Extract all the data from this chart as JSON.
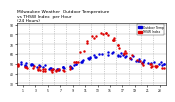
{
  "title": "Milwaukee Weather  Outdoor Temperature\nvs THSW Index  per Hour\n(24 Hours)",
  "title_fontsize": 3.2,
  "background_color": "#ffffff",
  "grid_color": "#aaaaaa",
  "temp_color": "#0000dd",
  "thsw_color": "#dd0000",
  "legend_temp_label": "Outdoor Temp",
  "legend_thsw_label": "THSW Index",
  "ylim": [
    28,
    92
  ],
  "xlim": [
    0,
    24
  ],
  "yticks": [
    30,
    40,
    50,
    60,
    70,
    80,
    90
  ],
  "xticks": [
    1,
    3,
    5,
    7,
    9,
    11,
    13,
    15,
    17,
    19,
    21,
    23
  ],
  "temp_x": [
    0.5,
    1.5,
    2.5,
    3.5,
    4.5,
    5.5,
    6.5,
    7.5,
    8.5,
    9.5,
    10.5,
    11.5,
    12.5,
    13.5,
    14.5,
    15.5,
    16.5,
    17.5,
    18.5,
    19.5,
    20.5,
    21.5,
    22.5,
    23.5
  ],
  "temp_y": [
    50,
    49,
    48,
    47,
    47,
    46,
    45,
    46,
    47,
    49,
    52,
    55,
    58,
    60,
    61,
    60,
    59,
    58,
    56,
    54,
    53,
    52,
    51,
    50
  ],
  "thsw_x": [
    0.5,
    1.5,
    2.5,
    3.5,
    4.5,
    5.5,
    6.5,
    7.5,
    8.5,
    9.5,
    10.5,
    11.5,
    12.5,
    13.5,
    14.5,
    15.5,
    16.5,
    17.5,
    18.5,
    19.5,
    20.5,
    21.5,
    22.5,
    23.5
  ],
  "thsw_y": [
    48,
    47,
    46,
    45,
    44,
    43,
    43,
    44,
    46,
    52,
    62,
    72,
    78,
    82,
    80,
    75,
    68,
    62,
    57,
    53,
    50,
    48,
    47,
    46
  ],
  "marker_size": 1.5
}
